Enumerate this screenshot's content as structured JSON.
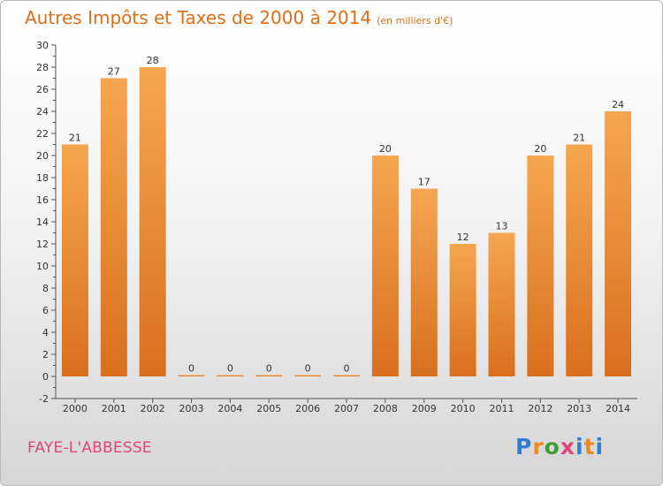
{
  "header": {
    "title": "Autres Impôts et Taxes de 2000 à 2014",
    "subtitle": "(en milliers d'€)"
  },
  "commune": "FAYE-L'ABBESSE",
  "logo": {
    "letters": [
      "P",
      "r",
      "o",
      "x",
      "i",
      "t",
      "i"
    ],
    "text": "Proxiti"
  },
  "colors": {
    "bar_light": "#f6a650",
    "bar_dark": "#d96f1c",
    "title": "#e07018",
    "commune": "#e0457b"
  },
  "chart_data": {
    "type": "bar",
    "title": "Autres Impôts et Taxes de 2000 à 2014",
    "xlabel": "",
    "ylabel": "",
    "categories": [
      "2000",
      "2001",
      "2002",
      "2003",
      "2004",
      "2005",
      "2006",
      "2007",
      "2008",
      "2009",
      "2010",
      "2011",
      "2012",
      "2013",
      "2014"
    ],
    "values": [
      21,
      27,
      28,
      0,
      0,
      0,
      0,
      0,
      20,
      17,
      12,
      13,
      20,
      21,
      24
    ],
    "ylim": [
      -2,
      30
    ],
    "yticks": [
      -2,
      0,
      2,
      4,
      6,
      8,
      10,
      12,
      14,
      16,
      18,
      20,
      22,
      24,
      26,
      28,
      30
    ],
    "grid": false,
    "legend": "none"
  }
}
